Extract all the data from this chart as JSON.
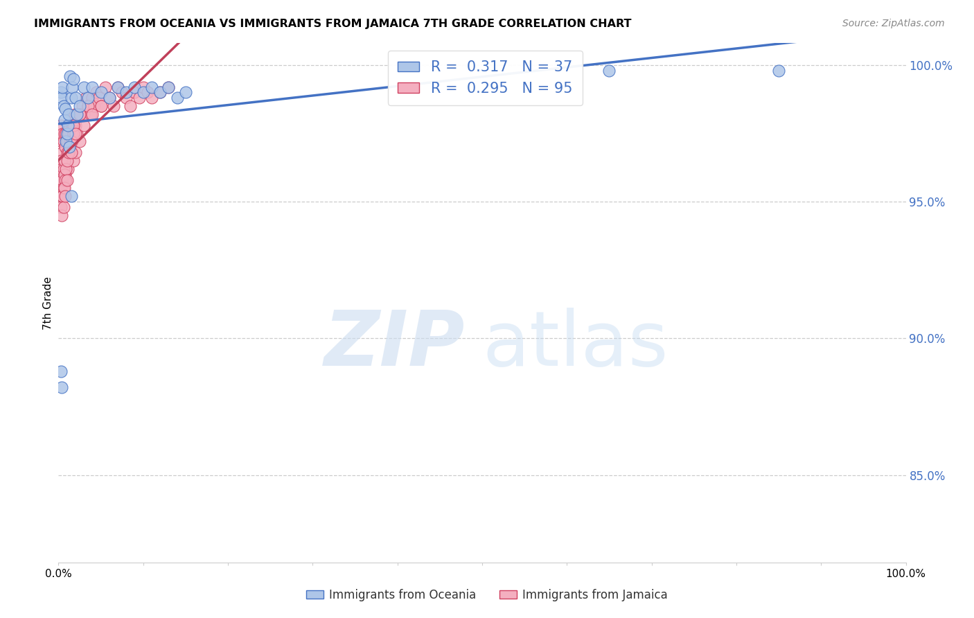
{
  "title": "IMMIGRANTS FROM OCEANIA VS IMMIGRANTS FROM JAMAICA 7TH GRADE CORRELATION CHART",
  "source": "Source: ZipAtlas.com",
  "ylabel": "7th Grade",
  "oceania_color": "#aec6e8",
  "oceania_edge": "#4472c4",
  "jamaica_color": "#f4afc0",
  "jamaica_edge": "#d04060",
  "trendline_blue": "#4472c4",
  "trendline_pink": "#c0405a",
  "watermark_zip": "ZIP",
  "watermark_atlas": "atlas",
  "legend_r_blue": "0.317",
  "legend_n_blue": "37",
  "legend_r_pink": "0.295",
  "legend_n_pink": "95",
  "xlim": [
    0.0,
    1.0
  ],
  "ylim": [
    0.818,
    1.008
  ],
  "yticks": [
    0.85,
    0.9,
    0.95,
    1.0
  ],
  "ytick_labels": [
    "85.0%",
    "90.0%",
    "95.0%",
    "100.0%"
  ],
  "scatter_blue_x": [
    0.003,
    0.004,
    0.005,
    0.006,
    0.007,
    0.008,
    0.009,
    0.01,
    0.011,
    0.012,
    0.013,
    0.014,
    0.015,
    0.016,
    0.018,
    0.02,
    0.022,
    0.025,
    0.03,
    0.035,
    0.04,
    0.05,
    0.06,
    0.07,
    0.08,
    0.09,
    0.1,
    0.11,
    0.12,
    0.13,
    0.14,
    0.15,
    0.003,
    0.004,
    0.015,
    0.65,
    0.85
  ],
  "scatter_blue_y": [
    0.99,
    0.988,
    0.992,
    0.985,
    0.98,
    0.984,
    0.972,
    0.975,
    0.978,
    0.982,
    0.97,
    0.996,
    0.988,
    0.992,
    0.995,
    0.988,
    0.982,
    0.985,
    0.992,
    0.988,
    0.992,
    0.99,
    0.988,
    0.992,
    0.99,
    0.992,
    0.99,
    0.992,
    0.99,
    0.992,
    0.988,
    0.99,
    0.888,
    0.882,
    0.952,
    0.998,
    0.998
  ],
  "scatter_pink_x": [
    0.003,
    0.004,
    0.005,
    0.005,
    0.006,
    0.006,
    0.007,
    0.007,
    0.008,
    0.008,
    0.009,
    0.009,
    0.01,
    0.01,
    0.011,
    0.011,
    0.012,
    0.012,
    0.013,
    0.014,
    0.015,
    0.015,
    0.016,
    0.017,
    0.018,
    0.018,
    0.019,
    0.02,
    0.02,
    0.022,
    0.025,
    0.025,
    0.028,
    0.03,
    0.032,
    0.035,
    0.038,
    0.04,
    0.042,
    0.045,
    0.048,
    0.05,
    0.055,
    0.06,
    0.065,
    0.07,
    0.075,
    0.08,
    0.085,
    0.09,
    0.095,
    0.1,
    0.105,
    0.11,
    0.12,
    0.13,
    0.003,
    0.004,
    0.005,
    0.006,
    0.007,
    0.008,
    0.009,
    0.01,
    0.012,
    0.014,
    0.016,
    0.018,
    0.02,
    0.025,
    0.03,
    0.035,
    0.04,
    0.05,
    0.003,
    0.004,
    0.005,
    0.006,
    0.007,
    0.008,
    0.009,
    0.01,
    0.012,
    0.015,
    0.018,
    0.02,
    0.025,
    0.003,
    0.004,
    0.005,
    0.006,
    0.007,
    0.008,
    0.01,
    0.015
  ],
  "scatter_pink_y": [
    0.978,
    0.972,
    0.975,
    0.968,
    0.972,
    0.965,
    0.975,
    0.96,
    0.97,
    0.958,
    0.975,
    0.962,
    0.968,
    0.972,
    0.975,
    0.962,
    0.978,
    0.968,
    0.972,
    0.978,
    0.975,
    0.968,
    0.972,
    0.978,
    0.975,
    0.965,
    0.982,
    0.978,
    0.968,
    0.975,
    0.982,
    0.972,
    0.985,
    0.982,
    0.988,
    0.985,
    0.982,
    0.988,
    0.985,
    0.99,
    0.988,
    0.985,
    0.992,
    0.988,
    0.985,
    0.992,
    0.99,
    0.988,
    0.985,
    0.99,
    0.988,
    0.992,
    0.99,
    0.988,
    0.99,
    0.992,
    0.965,
    0.962,
    0.958,
    0.962,
    0.965,
    0.96,
    0.958,
    0.972,
    0.975,
    0.972,
    0.978,
    0.975,
    0.98,
    0.982,
    0.978,
    0.985,
    0.982,
    0.985,
    0.955,
    0.952,
    0.958,
    0.955,
    0.96,
    0.958,
    0.962,
    0.965,
    0.968,
    0.972,
    0.978,
    0.975,
    0.982,
    0.948,
    0.945,
    0.952,
    0.948,
    0.955,
    0.952,
    0.958,
    0.968
  ]
}
